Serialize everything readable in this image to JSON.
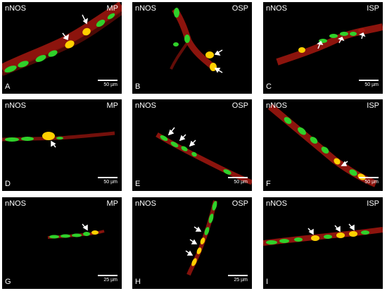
{
  "panels": [
    {
      "stain": "nNOS",
      "region": "MP",
      "letter": "A",
      "scale": "50 µm"
    },
    {
      "stain": "nNOS",
      "region": "OSP",
      "letter": "B",
      "scale": ""
    },
    {
      "stain": "nNOS",
      "region": "ISP",
      "letter": "C",
      "scale": "50 µm"
    },
    {
      "stain": "nNOS",
      "region": "MP",
      "letter": "D",
      "scale": "50 µm"
    },
    {
      "stain": "nNOS",
      "region": "OSP",
      "letter": "E",
      "scale": "50 µm"
    },
    {
      "stain": "nNOS",
      "region": "ISP",
      "letter": "F",
      "scale": "50 µm"
    },
    {
      "stain": "nNOS",
      "region": "MP",
      "letter": "G",
      "scale": "25 µm"
    },
    {
      "stain": "nNOS",
      "region": "OSP",
      "letter": "H",
      "scale": "25 µm"
    },
    {
      "stain": "nNOS",
      "region": "ISP",
      "letter": "I",
      "scale": ""
    }
  ],
  "colors": {
    "background": "#000000",
    "fiber": "#b0180f",
    "cell": "#2fd12a",
    "colocalized": "#ffd000",
    "text": "#ffffff"
  }
}
